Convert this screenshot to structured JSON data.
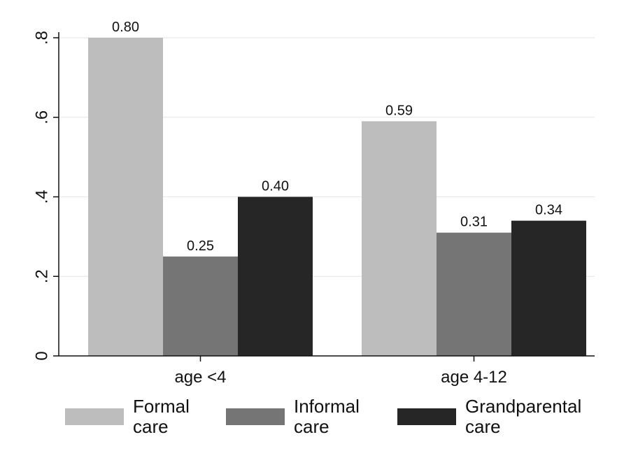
{
  "chart_data": {
    "type": "bar",
    "categories": [
      "age <4",
      "age 4-12"
    ],
    "series": [
      {
        "name": "Formal care",
        "name_lines": [
          "Formal",
          "care"
        ],
        "values": [
          0.8,
          0.59
        ],
        "labels": [
          "0.80",
          "0.59"
        ],
        "color": "#bdbdbd"
      },
      {
        "name": "Informal care",
        "name_lines": [
          "Informal",
          "care"
        ],
        "values": [
          0.25,
          0.31
        ],
        "labels": [
          "0.25",
          "0.31"
        ],
        "color": "#757575"
      },
      {
        "name": "Grandparental care",
        "name_lines": [
          "Grandparental",
          "care"
        ],
        "values": [
          0.4,
          0.34
        ],
        "labels": [
          "0.40",
          "0.34"
        ],
        "color": "#262626"
      }
    ],
    "ylim": [
      0,
      0.8
    ],
    "yticks": [
      0,
      0.2,
      0.4,
      0.6,
      0.8
    ],
    "ytick_labels": [
      "0",
      ".2",
      ".4",
      ".6",
      ".8"
    ],
    "grid": true,
    "legend": "bottom",
    "title": "",
    "xlabel": "",
    "ylabel": ""
  }
}
